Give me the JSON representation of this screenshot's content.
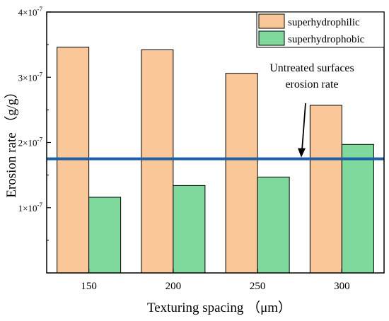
{
  "chart_data": {
    "type": "bar",
    "title": "",
    "xlabel": "Texturing spacing （μm）",
    "ylabel": "Erosion rate （g/g）",
    "categories": [
      "150",
      "200",
      "250",
      "300"
    ],
    "ylim": [
      0,
      4e-07
    ],
    "y_ticks": [
      {
        "value": 1e-07,
        "base": "1×10",
        "exp": "-7"
      },
      {
        "value": 2e-07,
        "base": "2×10",
        "exp": "-7"
      },
      {
        "value": 3e-07,
        "base": "3×10",
        "exp": "-7"
      },
      {
        "value": 4e-07,
        "base": "4×10",
        "exp": "-7"
      }
    ],
    "series": [
      {
        "name": "superhydrophilic",
        "values": [
          3.46e-07,
          3.42e-07,
          3.06e-07,
          2.57e-07
        ],
        "color": "#FAC898"
      },
      {
        "name": "superhydrophobic",
        "values": [
          1.16e-07,
          1.34e-07,
          1.47e-07,
          1.97e-07
        ],
        "color": "#7FD99C"
      }
    ],
    "reference_line": {
      "value": 1.75e-07,
      "color": "#1F5FA8"
    },
    "annotation": {
      "lines": [
        "Untreated surfaces",
        "erosion rate"
      ]
    },
    "legend_position": "top-right",
    "grid": false
  }
}
